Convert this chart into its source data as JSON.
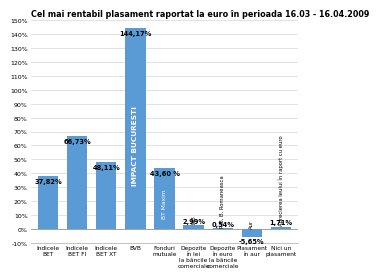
{
  "title": "Cel mai rentabil plasament raportat la euro în perioada 16.03 - 16.04.2009",
  "categories": [
    "Indicele\nBET",
    "Indicele\nBET FI",
    "Indicele\nBET XT",
    "BVB",
    "Fonduri\nmutuale",
    "Depozite\nîn lei\nla băncile\ncomerciale",
    "Depozite\nîn euro\nla băncile\ncomerciale",
    "Plasament\nîn aur",
    "Nici un\nplasament"
  ],
  "values": [
    37.82,
    66.73,
    48.11,
    144.17,
    43.6,
    2.99,
    0.54,
    -5.65,
    1.71
  ],
  "bar_labels": [
    "37,82%",
    "66,73%",
    "48,11%",
    "144,17%",
    "43,60 %",
    "2,99%",
    "0,54%",
    "-5,65%",
    "1,71%"
  ],
  "bar_annotations": [
    "",
    "",
    "",
    "IMPACT BUCURESTI",
    "BT Maxim",
    "RIB",
    "RIB, B. Romaneasca",
    "Aur",
    "Aprecierea leului în raport cu euro"
  ],
  "bar_color": "#5b9bd5",
  "ylim": [
    -10,
    150
  ],
  "yticks": [
    -10,
    0,
    10,
    20,
    30,
    40,
    50,
    60,
    70,
    80,
    90,
    100,
    110,
    120,
    130,
    140,
    150
  ],
  "ytick_labels": [
    "-10%",
    "0%",
    "10%",
    "20%",
    "30%",
    "40%",
    "50%",
    "60%",
    "70%",
    "80%",
    "90%",
    "100%",
    "110%",
    "120%",
    "130%",
    "140%",
    "150%"
  ],
  "title_fontsize": 5.8,
  "tick_fontsize": 4.5,
  "label_fontsize": 4.2,
  "value_fontsize": 4.8,
  "annotation_fontsize": 3.8
}
